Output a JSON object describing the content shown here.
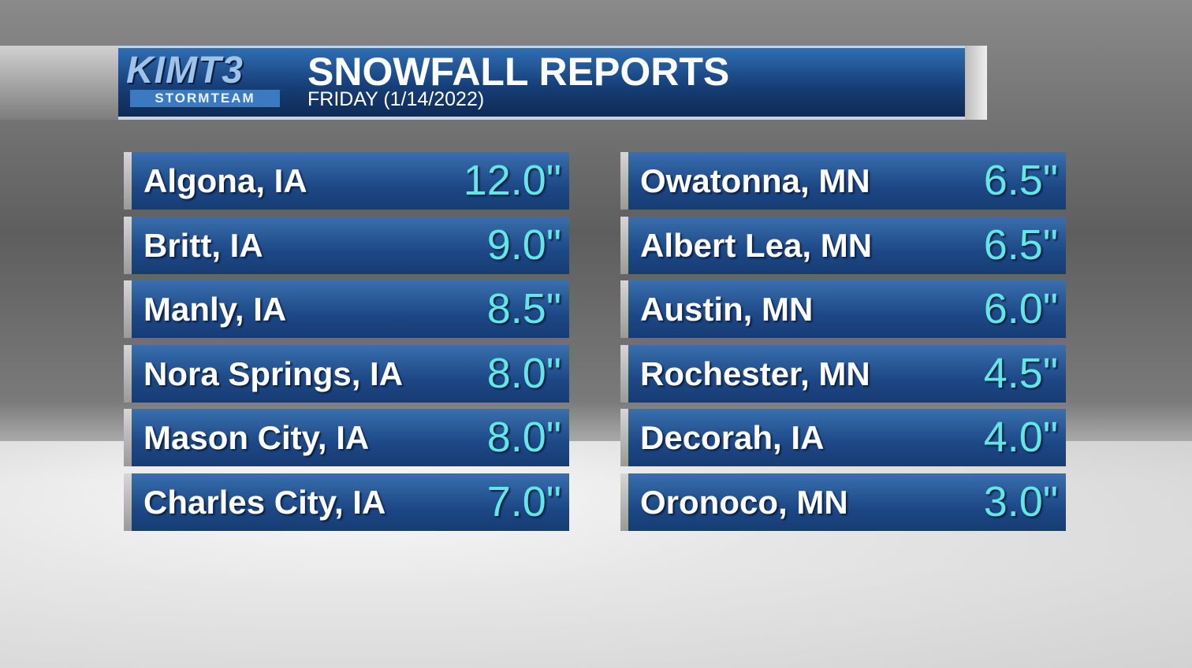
{
  "header": {
    "logo": {
      "top": "KIMT3",
      "bottom": "STORMTEAM"
    },
    "title": "SNOWFALL REPORTS",
    "subtitle": "FRIDAY (1/14/2022)"
  },
  "table": {
    "columns": [
      {
        "rows": [
          [
            "Algona, IA",
            "12.0\""
          ],
          [
            "Britt, IA",
            "9.0\""
          ],
          [
            "Manly, IA",
            "8.5\""
          ],
          [
            "Nora Springs, IA",
            "8.0\""
          ],
          [
            "Mason City, IA",
            "8.0\""
          ],
          [
            "Charles City, IA",
            "7.0\""
          ]
        ]
      },
      {
        "rows": [
          [
            "Owatonna, MN",
            "6.5\""
          ],
          [
            "Albert Lea, MN",
            "6.5\""
          ],
          [
            "Austin, MN",
            "6.0\""
          ],
          [
            "Rochester, MN",
            "4.5\""
          ],
          [
            "Decorah, IA",
            "4.0\""
          ],
          [
            "Oronoco, MN",
            "3.0\""
          ]
        ]
      }
    ]
  }
}
